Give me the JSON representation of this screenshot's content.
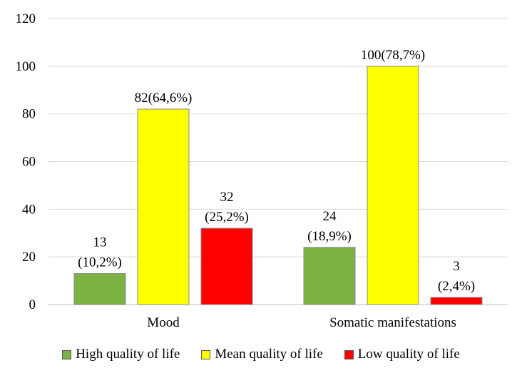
{
  "chart_data": {
    "type": "bar",
    "categories": [
      "Mood",
      "Somatic manifestations"
    ],
    "series": [
      {
        "name": "High quality of life",
        "values": [
          13,
          24
        ],
        "labels": [
          [
            "13",
            "(10,2%)"
          ],
          [
            "24",
            "(18,9%)"
          ]
        ],
        "color": "#7cb342"
      },
      {
        "name": "Mean quality of life",
        "values": [
          82,
          100
        ],
        "labels": [
          [
            "82(64,6%)"
          ],
          [
            "100(78,7%)"
          ]
        ],
        "color": "#ffff00"
      },
      {
        "name": "Low quality of life",
        "values": [
          32,
          3
        ],
        "labels": [
          [
            "32",
            "(25,2%)"
          ],
          [
            "3",
            "(2,4%)"
          ]
        ],
        "color": "#ff0000"
      }
    ],
    "yticks": [
      0,
      20,
      40,
      60,
      80,
      100,
      120
    ],
    "ylim": [
      0,
      120
    ],
    "grid": true,
    "legend_position": "bottom"
  }
}
